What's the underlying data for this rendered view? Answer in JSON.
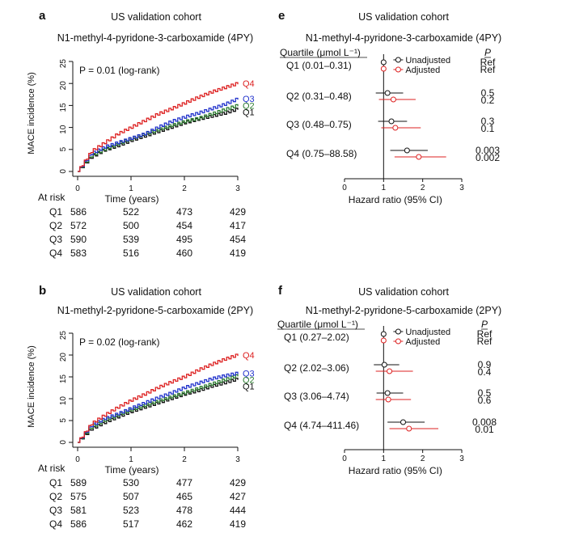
{
  "colors": {
    "q1": "#111111",
    "q2": "#2e7d32",
    "q3": "#2233cc",
    "q4": "#dd2222",
    "unadjusted": "#111111",
    "adjusted": "#dd2222"
  },
  "chart_data": [
    {
      "panel": "a",
      "type": "line",
      "title": "US validation cohort",
      "subtitle": "N1-methyl-4-pyridone-3-carboxamide (4PY)",
      "xlabel": "Time (years)",
      "ylabel": "MACE incidence (%)",
      "xlim": [
        0,
        3
      ],
      "ylim": [
        0,
        25
      ],
      "xticks": [
        "0",
        "1",
        "2",
        "3"
      ],
      "yticks": [
        "0",
        "5",
        "10",
        "15",
        "20",
        "25"
      ],
      "pvalue": "P = 0.01 (log-rank)",
      "series": [
        {
          "name": "Q1",
          "x": [
            0,
            0.25,
            0.5,
            0.75,
            1,
            1.25,
            1.5,
            1.75,
            2,
            2.25,
            2.5,
            2.75,
            3
          ],
          "y": [
            0,
            3.2,
            4.8,
            5.8,
            7,
            8,
            9,
            10,
            11,
            11.8,
            12.5,
            13.2,
            14.2
          ]
        },
        {
          "name": "Q2",
          "x": [
            0,
            0.25,
            0.5,
            0.75,
            1,
            1.25,
            1.5,
            1.75,
            2,
            2.25,
            2.5,
            2.75,
            3
          ],
          "y": [
            0,
            3.5,
            5,
            6.2,
            7.4,
            8.4,
            9.4,
            10.4,
            11.3,
            12,
            13,
            14,
            15
          ]
        },
        {
          "name": "Q3",
          "x": [
            0,
            0.25,
            0.5,
            0.75,
            1,
            1.25,
            1.5,
            1.75,
            2,
            2.25,
            2.5,
            2.75,
            3
          ],
          "y": [
            0,
            4,
            5.5,
            6.5,
            7.5,
            8.5,
            10,
            11.3,
            12.3,
            13.2,
            14.2,
            15.2,
            16.5
          ]
        },
        {
          "name": "Q4",
          "x": [
            0,
            0.25,
            0.5,
            0.75,
            1,
            1.25,
            1.5,
            1.75,
            2,
            2.25,
            2.5,
            2.75,
            3
          ],
          "y": [
            0,
            4.5,
            6.5,
            8.5,
            10,
            11.5,
            13,
            14.2,
            15.5,
            16.8,
            18,
            19,
            20
          ]
        }
      ],
      "at_risk": {
        "label": "At risk",
        "rows": [
          {
            "name": "Q1",
            "n": "586",
            "values": [
              "522",
              "473",
              "429"
            ]
          },
          {
            "name": "Q2",
            "n": "572",
            "values": [
              "500",
              "454",
              "417"
            ]
          },
          {
            "name": "Q3",
            "n": "590",
            "values": [
              "539",
              "495",
              "454"
            ]
          },
          {
            "name": "Q4",
            "n": "583",
            "values": [
              "516",
              "460",
              "419"
            ]
          }
        ]
      }
    },
    {
      "panel": "b",
      "type": "line",
      "title": "US validation cohort",
      "subtitle": "N1-methyl-2-pyridone-5-carboxamide (2PY)",
      "xlabel": "Time (years)",
      "ylabel": "MACE incidence (%)",
      "xlim": [
        0,
        3
      ],
      "ylim": [
        0,
        25
      ],
      "xticks": [
        "0",
        "1",
        "2",
        "3"
      ],
      "yticks": [
        "0",
        "5",
        "10",
        "15",
        "20",
        "25"
      ],
      "pvalue": "P = 0.02 (log-rank)",
      "series": [
        {
          "name": "Q1",
          "x": [
            0,
            0.25,
            0.5,
            0.75,
            1,
            1.25,
            1.5,
            1.75,
            2,
            2.25,
            2.5,
            2.75,
            3
          ],
          "y": [
            0,
            3,
            4.5,
            5.8,
            7,
            8,
            9,
            10,
            11,
            11.8,
            12.8,
            13.6,
            14.5
          ]
        },
        {
          "name": "Q2",
          "x": [
            0,
            0.25,
            0.5,
            0.75,
            1,
            1.25,
            1.5,
            1.75,
            2,
            2.25,
            2.5,
            2.75,
            3
          ],
          "y": [
            0,
            3.4,
            5,
            6.2,
            7.4,
            8.4,
            9.4,
            10.4,
            11.3,
            12.3,
            13.3,
            14.3,
            15.3
          ]
        },
        {
          "name": "Q3",
          "x": [
            0,
            0.25,
            0.5,
            0.75,
            1,
            1.25,
            1.5,
            1.75,
            2,
            2.25,
            2.5,
            2.75,
            3
          ],
          "y": [
            0,
            3.8,
            5.4,
            6.5,
            7.8,
            9,
            10.2,
            11.3,
            12.5,
            13.5,
            14.5,
            15.2,
            15.8
          ]
        },
        {
          "name": "Q4",
          "x": [
            0,
            0.25,
            0.5,
            0.75,
            1,
            1.25,
            1.5,
            1.75,
            2,
            2.25,
            2.5,
            2.75,
            3
          ],
          "y": [
            0,
            4.2,
            6.2,
            8,
            9.6,
            11,
            12.5,
            13.8,
            15,
            16.5,
            17.8,
            19,
            20
          ]
        }
      ],
      "at_risk": {
        "label": "At risk",
        "rows": [
          {
            "name": "Q1",
            "n": "589",
            "values": [
              "530",
              "477",
              "429"
            ]
          },
          {
            "name": "Q2",
            "n": "575",
            "values": [
              "507",
              "465",
              "427"
            ]
          },
          {
            "name": "Q3",
            "n": "581",
            "values": [
              "523",
              "478",
              "444"
            ]
          },
          {
            "name": "Q4",
            "n": "586",
            "values": [
              "517",
              "462",
              "419"
            ]
          }
        ]
      }
    },
    {
      "panel": "e",
      "type": "forest",
      "title": "US validation cohort",
      "subtitle": "N1-methyl-4-pyridone-3-carboxamide (4PY)",
      "quartile_header": "Quartile (μmol L⁻¹)",
      "p_header": "P",
      "xlabel": "Hazard ratio (95% CI)",
      "xlim": [
        0,
        3
      ],
      "xticks": [
        "0",
        "1",
        "2",
        "3"
      ],
      "ref_line": 1,
      "legend": [
        "Unadjusted",
        "Adjusted"
      ],
      "rows": [
        {
          "label": "Q1 (0.01–0.31)",
          "unadjusted": {
            "hr": 1,
            "lo": 1,
            "hi": 1
          },
          "adjusted": {
            "hr": 1,
            "lo": 1,
            "hi": 1
          },
          "p_unadj": "Ref",
          "p_adj": "Ref"
        },
        {
          "label": "Q2 (0.31–0.48)",
          "unadjusted": {
            "hr": 1.1,
            "lo": 0.8,
            "hi": 1.5
          },
          "adjusted": {
            "hr": 1.25,
            "lo": 0.88,
            "hi": 1.82
          },
          "p_unadj": "0.5",
          "p_adj": "0.2"
        },
        {
          "label": "Q3 (0.48–0.75)",
          "unadjusted": {
            "hr": 1.2,
            "lo": 0.86,
            "hi": 1.6
          },
          "adjusted": {
            "hr": 1.3,
            "lo": 0.94,
            "hi": 1.95
          },
          "p_unadj": "0.3",
          "p_adj": "0.1"
        },
        {
          "label": "Q4 (0.75–88.58)",
          "unadjusted": {
            "hr": 1.6,
            "lo": 1.17,
            "hi": 2.13
          },
          "adjusted": {
            "hr": 1.9,
            "lo": 1.28,
            "hi": 2.6
          },
          "p_unadj": "0.003",
          "p_adj": "0.002"
        }
      ]
    },
    {
      "panel": "f",
      "type": "forest",
      "title": "US validation cohort",
      "subtitle": "N1-methyl-2-pyridone-5-carboxamide (2PY)",
      "quartile_header": "Quartile (μmol L⁻¹)",
      "p_header": "P",
      "xlabel": "Hazard ratio (95% CI)",
      "xlim": [
        0,
        3
      ],
      "xticks": [
        "0",
        "1",
        "2",
        "3"
      ],
      "ref_line": 1,
      "legend": [
        "Unadjusted",
        "Adjusted"
      ],
      "rows": [
        {
          "label": "Q1 (0.27–2.02)",
          "unadjusted": {
            "hr": 1,
            "lo": 1,
            "hi": 1
          },
          "adjusted": {
            "hr": 1,
            "lo": 1,
            "hi": 1
          },
          "p_unadj": "Ref",
          "p_adj": "Ref"
        },
        {
          "label": "Q2 (2.02–3.06)",
          "unadjusted": {
            "hr": 1.02,
            "lo": 0.75,
            "hi": 1.4
          },
          "adjusted": {
            "hr": 1.15,
            "lo": 0.8,
            "hi": 1.75
          },
          "p_unadj": "0.9",
          "p_adj": "0.4"
        },
        {
          "label": "Q3 (3.06–4.74)",
          "unadjusted": {
            "hr": 1.1,
            "lo": 0.82,
            "hi": 1.5
          },
          "adjusted": {
            "hr": 1.12,
            "lo": 0.8,
            "hi": 1.7
          },
          "p_unadj": "0.5",
          "p_adj": "0.6"
        },
        {
          "label": "Q4 (4.74–411.46)",
          "unadjusted": {
            "hr": 1.5,
            "lo": 1.1,
            "hi": 2.05
          },
          "adjusted": {
            "hr": 1.65,
            "lo": 1.15,
            "hi": 2.4
          },
          "p_unadj": "0.008",
          "p_adj": "0.01"
        }
      ]
    }
  ]
}
